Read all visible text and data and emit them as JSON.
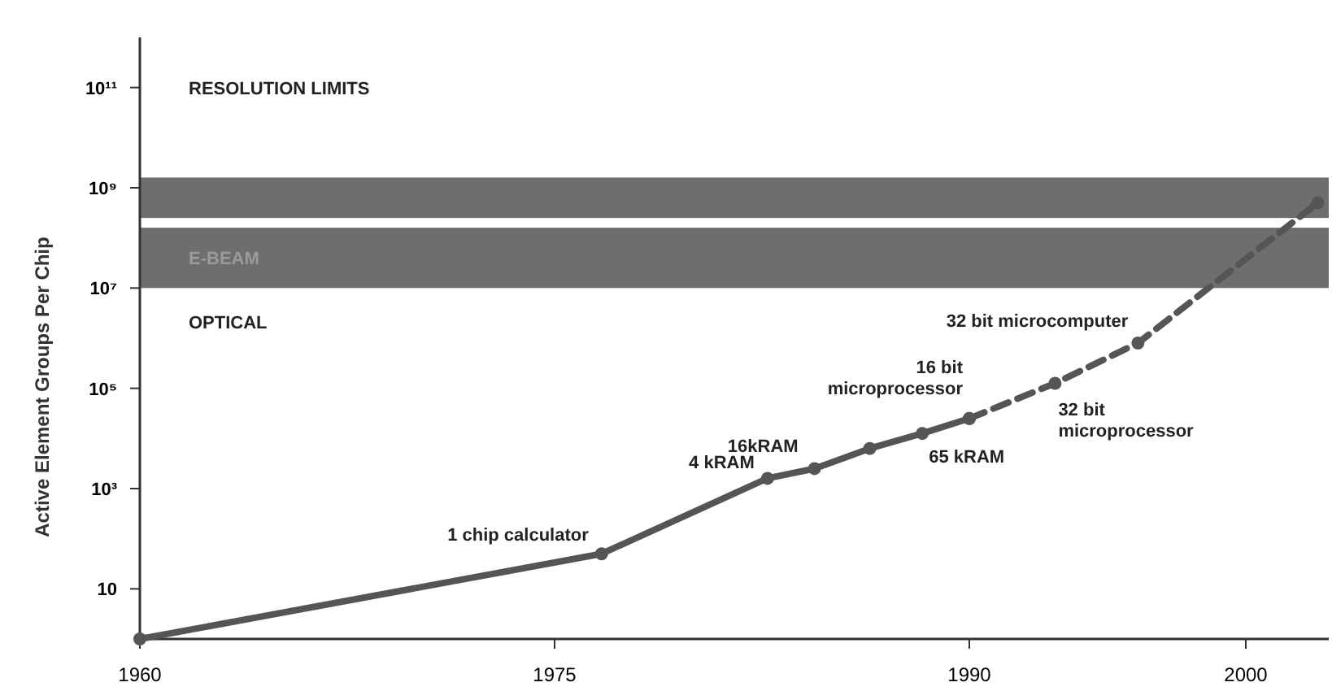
{
  "chart_data": {
    "type": "line",
    "ylabel": "Active Element Groups Per Chip",
    "log": "y",
    "xlim": [
      1960,
      2003
    ],
    "xticks": [
      1960,
      1975,
      1990,
      2000
    ],
    "ylim": [
      1,
      1000000000000
    ],
    "yticks": [
      {
        "value": 10,
        "label": "10"
      },
      {
        "value": 1000,
        "label": "10³"
      },
      {
        "value": 100000,
        "label": "10⁵"
      },
      {
        "value": 10000000,
        "label": "10⁷"
      },
      {
        "value": 1000000000,
        "label": "10⁹"
      },
      {
        "value": 100000000000,
        "label": "10¹¹"
      }
    ],
    "grid": false,
    "marker": "circle",
    "series": [
      {
        "color": "#555555",
        "line_style": "solid",
        "x": [
          1960,
          1976.7,
          1982.7,
          1984.4,
          1986.4,
          1988.3,
          1990
        ],
        "values": [
          1,
          50,
          1600,
          2500,
          6300,
          12600,
          25000
        ]
      },
      {
        "color": "#555555",
        "line_style": "dashed",
        "x": [
          1990,
          1993.1,
          1996.1,
          2002.6
        ],
        "values": [
          25000,
          126000,
          800000,
          500000000
        ]
      }
    ],
    "bands": [
      {
        "axis": "y",
        "from": 10000000,
        "to": 160000000,
        "label": "E-BEAM",
        "color": "#6e6e6e"
      },
      {
        "axis": "y",
        "from": 250000000,
        "to": 1600000000,
        "color": "#6e6e6e"
      }
    ],
    "annotations": [
      "RESOLUTION LIMITS",
      "OPTICAL",
      {
        "text": "1 chip calculator",
        "x": 1976.7,
        "y": 50
      },
      {
        "text": "4 kRAM",
        "x": 1982.7,
        "y": 1600
      },
      {
        "text": "16kRAM",
        "x": 1984.4,
        "y": 2500
      },
      {
        "text": "65 kRAM",
        "x": 1988.3,
        "y": 12600
      },
      {
        "text": "16 bit\nmicroprocessor",
        "x": 1990,
        "y": 25000
      },
      {
        "text": "32 bit\nmicroprocessor",
        "x": 1993.1,
        "y": 126000
      },
      {
        "text": "32 bit microcomputer",
        "x": 1996.1,
        "y": 800000
      }
    ]
  }
}
